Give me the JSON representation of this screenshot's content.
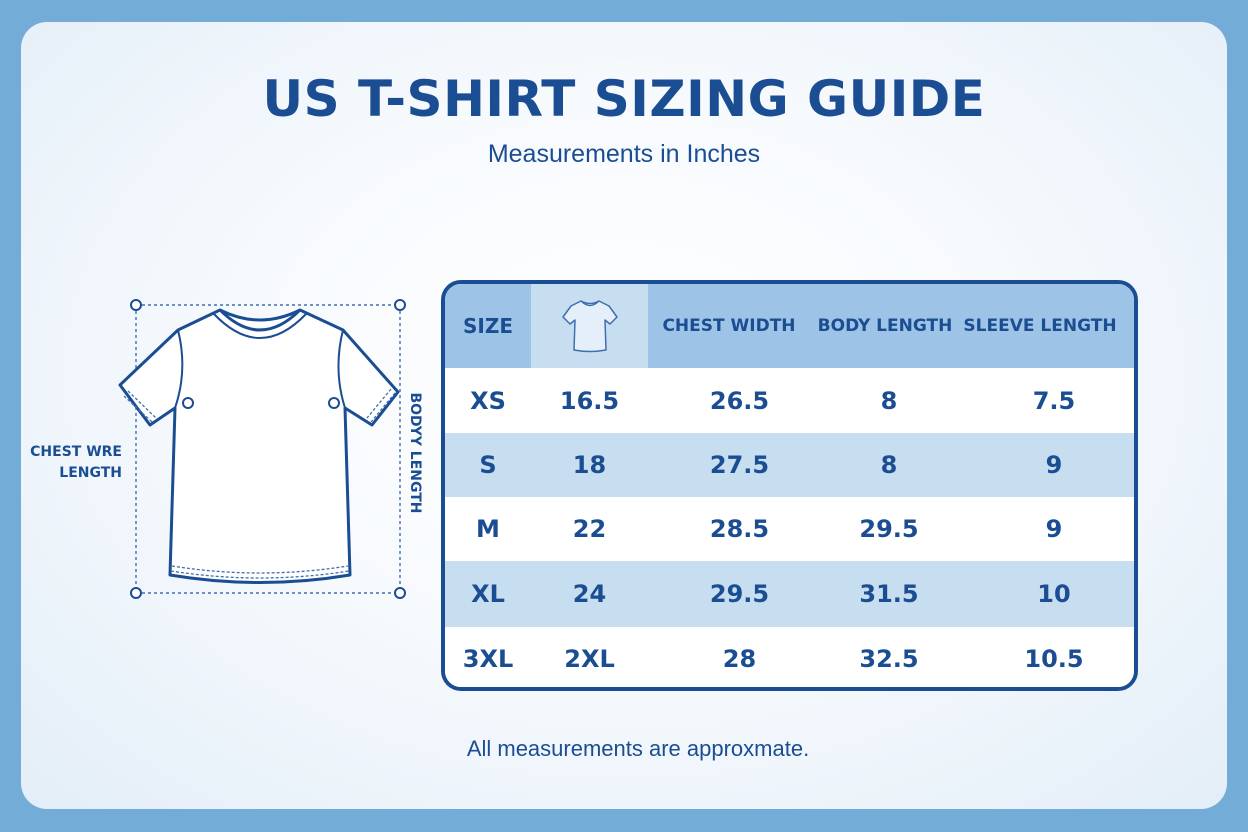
{
  "page": {
    "title": "US T-SHIRT SIZING GUIDE",
    "subtitle": "Measurements in Inches",
    "footnote": "All measurements are approxmate."
  },
  "diagram": {
    "icon": "tshirt-outline-icon",
    "side_label": "CHEST WRE\nLENGTH",
    "vertical_label": "BODYY LENGTH"
  },
  "table": {
    "headers": [
      "SIZE",
      "",
      "CHEST WIDTH",
      "BODY LENGTH",
      "SLEEVE LENGTH"
    ],
    "header_icon": "tshirt-icon",
    "rows": [
      [
        "XS",
        "16.5",
        "26.5",
        "8",
        "7.5"
      ],
      [
        "S",
        "18",
        "27.5",
        "8",
        "9"
      ],
      [
        "M",
        "22",
        "28.5",
        "29.5",
        "9"
      ],
      [
        "XL",
        "24",
        "29.5",
        "31.5",
        "10"
      ],
      [
        "3XL",
        "2XL",
        "28",
        "32.5",
        "10.5"
      ]
    ]
  },
  "colors": {
    "frame": "#74acd8",
    "text": "#1b4d93",
    "header_bg": "#9dc3e6",
    "alt_row": "#c7ddf0"
  }
}
